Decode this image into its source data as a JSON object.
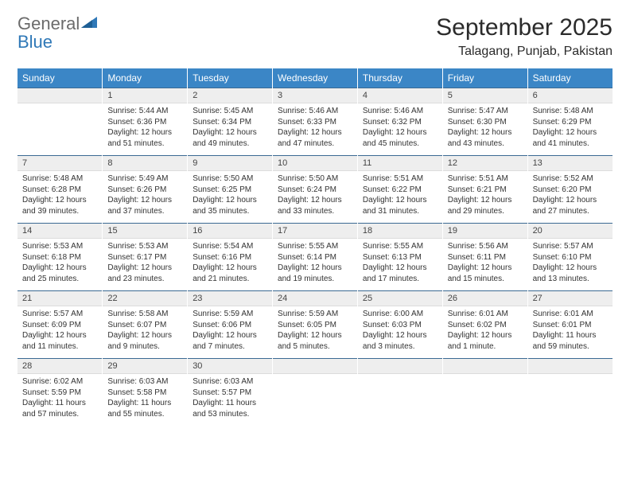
{
  "brand": {
    "line1": "General",
    "line2": "Blue"
  },
  "title": "September 2025",
  "location": "Talagang, Punjab, Pakistan",
  "theme": {
    "header_bg": "#3b86c6",
    "header_fg": "#ffffff",
    "daynum_bg": "#eeeeee",
    "border_top": "#3b6a93"
  },
  "weekdays": [
    "Sunday",
    "Monday",
    "Tuesday",
    "Wednesday",
    "Thursday",
    "Friday",
    "Saturday"
  ],
  "weeks": [
    [
      {
        "n": "",
        "sr": "",
        "ss": "",
        "dl": ""
      },
      {
        "n": "1",
        "sr": "Sunrise: 5:44 AM",
        "ss": "Sunset: 6:36 PM",
        "dl": "Daylight: 12 hours and 51 minutes."
      },
      {
        "n": "2",
        "sr": "Sunrise: 5:45 AM",
        "ss": "Sunset: 6:34 PM",
        "dl": "Daylight: 12 hours and 49 minutes."
      },
      {
        "n": "3",
        "sr": "Sunrise: 5:46 AM",
        "ss": "Sunset: 6:33 PM",
        "dl": "Daylight: 12 hours and 47 minutes."
      },
      {
        "n": "4",
        "sr": "Sunrise: 5:46 AM",
        "ss": "Sunset: 6:32 PM",
        "dl": "Daylight: 12 hours and 45 minutes."
      },
      {
        "n": "5",
        "sr": "Sunrise: 5:47 AM",
        "ss": "Sunset: 6:30 PM",
        "dl": "Daylight: 12 hours and 43 minutes."
      },
      {
        "n": "6",
        "sr": "Sunrise: 5:48 AM",
        "ss": "Sunset: 6:29 PM",
        "dl": "Daylight: 12 hours and 41 minutes."
      }
    ],
    [
      {
        "n": "7",
        "sr": "Sunrise: 5:48 AM",
        "ss": "Sunset: 6:28 PM",
        "dl": "Daylight: 12 hours and 39 minutes."
      },
      {
        "n": "8",
        "sr": "Sunrise: 5:49 AM",
        "ss": "Sunset: 6:26 PM",
        "dl": "Daylight: 12 hours and 37 minutes."
      },
      {
        "n": "9",
        "sr": "Sunrise: 5:50 AM",
        "ss": "Sunset: 6:25 PM",
        "dl": "Daylight: 12 hours and 35 minutes."
      },
      {
        "n": "10",
        "sr": "Sunrise: 5:50 AM",
        "ss": "Sunset: 6:24 PM",
        "dl": "Daylight: 12 hours and 33 minutes."
      },
      {
        "n": "11",
        "sr": "Sunrise: 5:51 AM",
        "ss": "Sunset: 6:22 PM",
        "dl": "Daylight: 12 hours and 31 minutes."
      },
      {
        "n": "12",
        "sr": "Sunrise: 5:51 AM",
        "ss": "Sunset: 6:21 PM",
        "dl": "Daylight: 12 hours and 29 minutes."
      },
      {
        "n": "13",
        "sr": "Sunrise: 5:52 AM",
        "ss": "Sunset: 6:20 PM",
        "dl": "Daylight: 12 hours and 27 minutes."
      }
    ],
    [
      {
        "n": "14",
        "sr": "Sunrise: 5:53 AM",
        "ss": "Sunset: 6:18 PM",
        "dl": "Daylight: 12 hours and 25 minutes."
      },
      {
        "n": "15",
        "sr": "Sunrise: 5:53 AM",
        "ss": "Sunset: 6:17 PM",
        "dl": "Daylight: 12 hours and 23 minutes."
      },
      {
        "n": "16",
        "sr": "Sunrise: 5:54 AM",
        "ss": "Sunset: 6:16 PM",
        "dl": "Daylight: 12 hours and 21 minutes."
      },
      {
        "n": "17",
        "sr": "Sunrise: 5:55 AM",
        "ss": "Sunset: 6:14 PM",
        "dl": "Daylight: 12 hours and 19 minutes."
      },
      {
        "n": "18",
        "sr": "Sunrise: 5:55 AM",
        "ss": "Sunset: 6:13 PM",
        "dl": "Daylight: 12 hours and 17 minutes."
      },
      {
        "n": "19",
        "sr": "Sunrise: 5:56 AM",
        "ss": "Sunset: 6:11 PM",
        "dl": "Daylight: 12 hours and 15 minutes."
      },
      {
        "n": "20",
        "sr": "Sunrise: 5:57 AM",
        "ss": "Sunset: 6:10 PM",
        "dl": "Daylight: 12 hours and 13 minutes."
      }
    ],
    [
      {
        "n": "21",
        "sr": "Sunrise: 5:57 AM",
        "ss": "Sunset: 6:09 PM",
        "dl": "Daylight: 12 hours and 11 minutes."
      },
      {
        "n": "22",
        "sr": "Sunrise: 5:58 AM",
        "ss": "Sunset: 6:07 PM",
        "dl": "Daylight: 12 hours and 9 minutes."
      },
      {
        "n": "23",
        "sr": "Sunrise: 5:59 AM",
        "ss": "Sunset: 6:06 PM",
        "dl": "Daylight: 12 hours and 7 minutes."
      },
      {
        "n": "24",
        "sr": "Sunrise: 5:59 AM",
        "ss": "Sunset: 6:05 PM",
        "dl": "Daylight: 12 hours and 5 minutes."
      },
      {
        "n": "25",
        "sr": "Sunrise: 6:00 AM",
        "ss": "Sunset: 6:03 PM",
        "dl": "Daylight: 12 hours and 3 minutes."
      },
      {
        "n": "26",
        "sr": "Sunrise: 6:01 AM",
        "ss": "Sunset: 6:02 PM",
        "dl": "Daylight: 12 hours and 1 minute."
      },
      {
        "n": "27",
        "sr": "Sunrise: 6:01 AM",
        "ss": "Sunset: 6:01 PM",
        "dl": "Daylight: 11 hours and 59 minutes."
      }
    ],
    [
      {
        "n": "28",
        "sr": "Sunrise: 6:02 AM",
        "ss": "Sunset: 5:59 PM",
        "dl": "Daylight: 11 hours and 57 minutes."
      },
      {
        "n": "29",
        "sr": "Sunrise: 6:03 AM",
        "ss": "Sunset: 5:58 PM",
        "dl": "Daylight: 11 hours and 55 minutes."
      },
      {
        "n": "30",
        "sr": "Sunrise: 6:03 AM",
        "ss": "Sunset: 5:57 PM",
        "dl": "Daylight: 11 hours and 53 minutes."
      },
      {
        "n": "",
        "sr": "",
        "ss": "",
        "dl": ""
      },
      {
        "n": "",
        "sr": "",
        "ss": "",
        "dl": ""
      },
      {
        "n": "",
        "sr": "",
        "ss": "",
        "dl": ""
      },
      {
        "n": "",
        "sr": "",
        "ss": "",
        "dl": ""
      }
    ]
  ]
}
